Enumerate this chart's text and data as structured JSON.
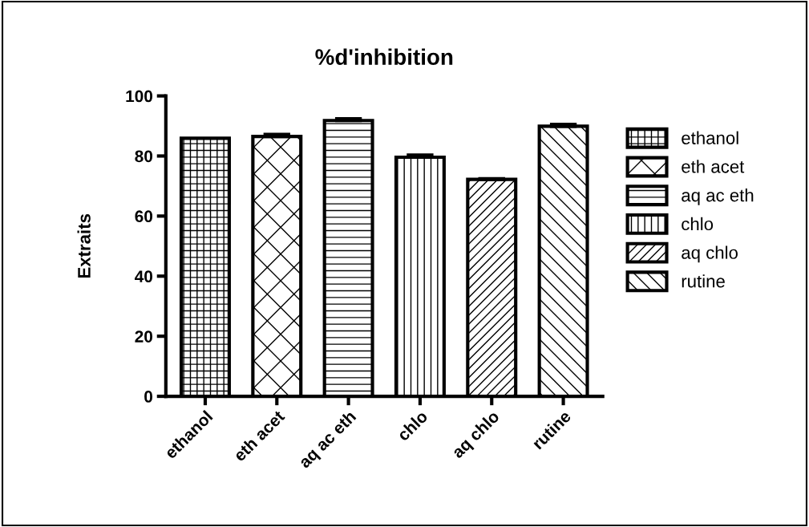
{
  "chart_data": {
    "type": "bar",
    "title": "%d'inhibition",
    "ylabel": "Extraits",
    "categories": [
      "ethanol",
      "eth acet",
      "aq ac eth",
      "chlo",
      "aq chlo",
      "rutine"
    ],
    "series": [
      {
        "name": "ethanol",
        "color": "#000000",
        "values": [
          85.9,
          null,
          null,
          null,
          null,
          null
        ],
        "errors": [
          null,
          null,
          null,
          null,
          null,
          null
        ]
      },
      {
        "name": "eth acet",
        "color": "#000000",
        "values": [
          null,
          86.5,
          null,
          null,
          null,
          null
        ],
        "errors": [
          null,
          0.7,
          null,
          null,
          null,
          null
        ]
      },
      {
        "name": "aq ac eth",
        "color": "#000000",
        "values": [
          null,
          null,
          91.8,
          null,
          null,
          null
        ],
        "errors": [
          null,
          null,
          0.6,
          null,
          null,
          null
        ]
      },
      {
        "name": "chlo",
        "color": "#000000",
        "values": [
          null,
          null,
          null,
          79.6,
          null,
          null
        ],
        "errors": [
          null,
          null,
          null,
          0.7,
          null,
          null
        ]
      },
      {
        "name": "aq chlo",
        "color": "#000000",
        "values": [
          null,
          null,
          null,
          null,
          72.2,
          null
        ],
        "errors": [
          null,
          null,
          null,
          null,
          0.2,
          null
        ]
      },
      {
        "name": "rutine",
        "color": "#000000",
        "values": [
          null,
          null,
          null,
          null,
          null,
          89.9
        ],
        "errors": [
          null,
          null,
          null,
          null,
          null,
          0.6
        ]
      }
    ],
    "ylim": [
      0,
      100
    ],
    "yticks": [
      0,
      20,
      40,
      60,
      80,
      100
    ],
    "grid": false,
    "legend": "right"
  }
}
